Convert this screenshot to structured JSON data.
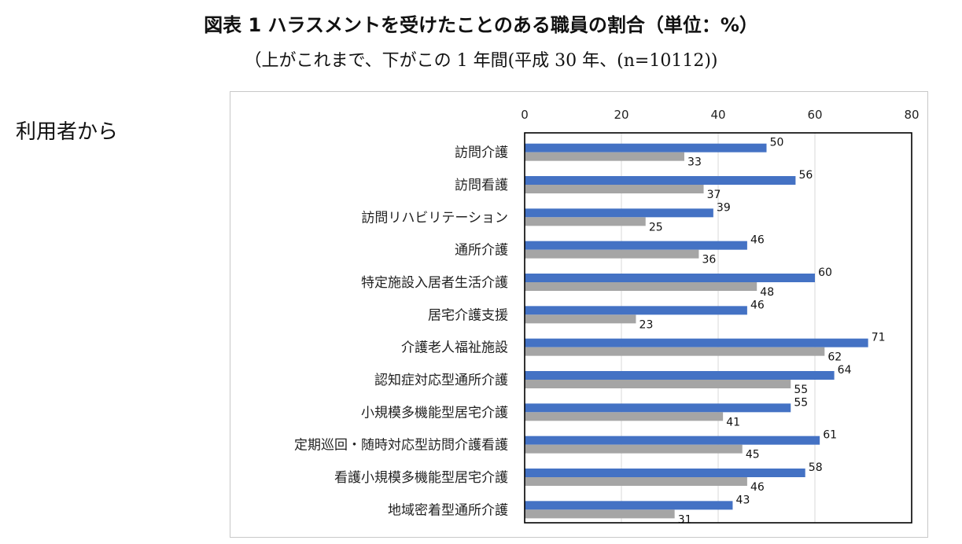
{
  "header": {
    "title": "図表 1 ハラスメントを受けたことのある職員の割合（単位：%）",
    "subtitle": "（上がこれまで、下がこの 1 年間(平成 30 年、(n=10112))"
  },
  "section_label": "利用者から",
  "colors": {
    "series_past": "#4472c4",
    "series_year": "#a5a5a5",
    "grid": "#d9d9d9"
  },
  "chart_data": {
    "type": "bar",
    "orientation": "horizontal",
    "categories": [
      "訪問介護",
      "訪問看護",
      "訪問リハビリテーション",
      "通所介護",
      "特定施設入居者生活介護",
      "居宅介護支援",
      "介護老人福祉施設",
      "認知症対応型通所介護",
      "小規模多機能型居宅介護",
      "定期巡回・随時対応型訪問介護看護",
      "看護小規模多機能型居宅介護",
      "地域密着型通所介護"
    ],
    "series": [
      {
        "values": [
          50,
          56,
          39,
          46,
          60,
          46,
          71,
          64,
          55,
          61,
          58,
          43
        ]
      },
      {
        "values": [
          33,
          37,
          25,
          36,
          48,
          23,
          62,
          55,
          41,
          45,
          46,
          31
        ]
      }
    ],
    "xlim": [
      0,
      80
    ],
    "xticks": [
      "0",
      "20",
      "40",
      "60",
      "80"
    ],
    "grid": true,
    "x_axis_position": "top",
    "data_labels": true
  }
}
